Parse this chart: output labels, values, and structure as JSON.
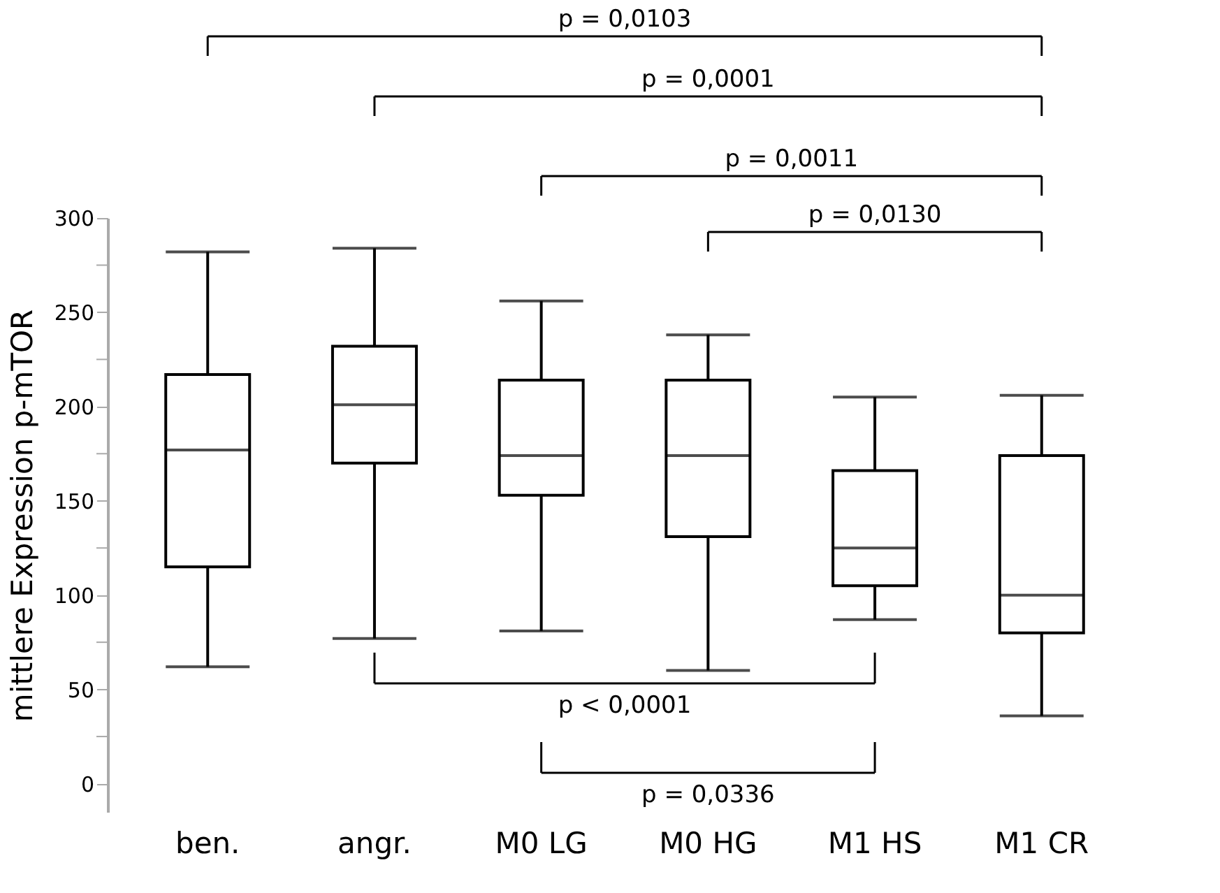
{
  "chart_data": {
    "type": "box",
    "ylabel": "mittlere Expression p-mTOR",
    "categories": [
      "ben.",
      "angr.",
      "M0 LG",
      "M0 HG",
      "M1 HS",
      "M1 CR"
    ],
    "boxes": [
      {
        "low": 62,
        "q1": 115,
        "median": 177,
        "q3": 217,
        "high": 282
      },
      {
        "low": 77,
        "q1": 170,
        "median": 201,
        "q3": 232,
        "high": 284
      },
      {
        "low": 81,
        "q1": 153,
        "median": 174,
        "q3": 214,
        "high": 256
      },
      {
        "low": 60,
        "q1": 131,
        "median": 174,
        "q3": 214,
        "high": 238
      },
      {
        "low": 87,
        "q1": 105,
        "median": 125,
        "q3": 166,
        "high": 205
      },
      {
        "low": 36,
        "q1": 80,
        "median": 100,
        "q3": 174,
        "high": 206
      }
    ],
    "color": "#ffffff",
    "ylim": [
      -15,
      300
    ],
    "yticks": [
      0,
      {
        "value": 25,
        "label": null
      },
      50,
      {
        "value": 75,
        "label": null
      },
      100,
      {
        "value": 125,
        "label": null
      },
      150,
      {
        "value": 175,
        "label": null
      },
      200,
      {
        "value": 225,
        "label": null
      },
      250,
      {
        "value": 275,
        "label": null
      },
      300
    ],
    "grid": false,
    "annotations": [
      "p = 0,0103",
      "p = 0,0001",
      "p = 0,0011",
      "p = 0,0130",
      "p < 0,0001",
      "p = 0,0336"
    ]
  }
}
